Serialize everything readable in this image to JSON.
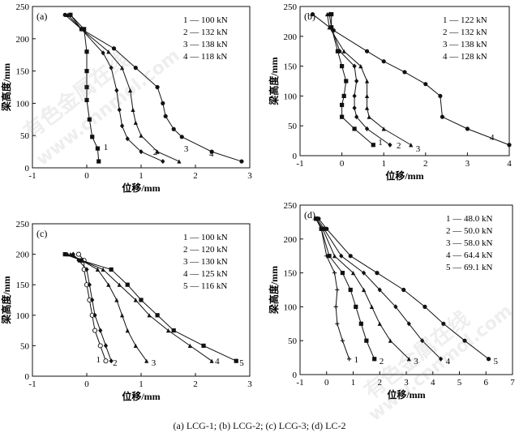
{
  "caption": "(a) LCG-1; (b) LCG-2; (c) LCG-3; (d) LC-2",
  "watermark": {
    "cn": "有色金属在线",
    "url": "www.cnnmol.com"
  },
  "chart_data": [
    {
      "type": "line",
      "panel_label": "(a)",
      "xlabel": "位移/mm",
      "ylabel": "梁高度/mm",
      "xlim": [
        -1,
        3
      ],
      "ylim": [
        0,
        250
      ],
      "xticks": [
        -1,
        0,
        1,
        2,
        3
      ],
      "yticks": [
        0,
        50,
        100,
        150,
        200,
        250
      ],
      "legend": [
        "1 — 100 kN",
        "2 — 132 kN",
        "3 — 138 kN",
        "4 — 118 kN"
      ],
      "series": [
        {
          "name": "1",
          "marker": "square",
          "points": [
            [
              -0.3,
              237
            ],
            [
              -0.05,
              215
            ],
            [
              0.0,
              180
            ],
            [
              0.0,
              150
            ],
            [
              0.0,
              125
            ],
            [
              0.0,
              105
            ],
            [
              0.05,
              75
            ],
            [
              0.1,
              48
            ],
            [
              0.2,
              30
            ],
            [
              0.22,
              10
            ]
          ]
        },
        {
          "name": "2",
          "marker": "diamond",
          "points": [
            [
              -0.3,
              237
            ],
            [
              -0.1,
              215
            ],
            [
              0.3,
              178
            ],
            [
              0.45,
              155
            ],
            [
              0.55,
              120
            ],
            [
              0.6,
              90
            ],
            [
              0.65,
              65
            ],
            [
              0.75,
              45
            ],
            [
              1.0,
              25
            ],
            [
              1.4,
              10
            ]
          ]
        },
        {
          "name": "3",
          "marker": "triangle",
          "points": [
            [
              -0.35,
              237
            ],
            [
              -0.1,
              215
            ],
            [
              0.4,
              180
            ],
            [
              0.65,
              155
            ],
            [
              0.8,
              120
            ],
            [
              0.85,
              90
            ],
            [
              0.9,
              70
            ],
            [
              1.0,
              50
            ],
            [
              1.3,
              25
            ],
            [
              1.7,
              10
            ]
          ]
        },
        {
          "name": "4",
          "marker": "circle",
          "points": [
            [
              -0.4,
              237
            ],
            [
              -0.1,
              215
            ],
            [
              0.5,
              185
            ],
            [
              0.9,
              155
            ],
            [
              1.3,
              125
            ],
            [
              1.4,
              100
            ],
            [
              1.45,
              80
            ],
            [
              1.6,
              60
            ],
            [
              1.75,
              48
            ],
            [
              2.3,
              25
            ],
            [
              2.85,
              10
            ]
          ]
        }
      ]
    },
    {
      "type": "line",
      "panel_label": "(b)",
      "xlabel": "位移/mm",
      "ylabel": "梁高度/mm",
      "xlim": [
        -1,
        4
      ],
      "ylim": [
        0,
        250
      ],
      "xticks": [
        -1,
        0,
        1,
        2,
        3,
        4
      ],
      "yticks": [
        0,
        50,
        100,
        150,
        200,
        250
      ],
      "legend": [
        "1 — 122 kN",
        "2 — 132 kN",
        "3 — 138 kN",
        "4 — 128 kN"
      ],
      "series": [
        {
          "name": "1",
          "marker": "square",
          "points": [
            [
              -0.25,
              237
            ],
            [
              -0.25,
              215
            ],
            [
              -0.1,
              175
            ],
            [
              0.0,
              150
            ],
            [
              0.1,
              125
            ],
            [
              0.05,
              100
            ],
            [
              0.0,
              85
            ],
            [
              0.0,
              65
            ],
            [
              0.3,
              45
            ],
            [
              0.75,
              18
            ]
          ]
        },
        {
          "name": "2",
          "marker": "diamond",
          "points": [
            [
              -0.3,
              237
            ],
            [
              -0.25,
              215
            ],
            [
              -0.05,
              175
            ],
            [
              0.3,
              150
            ],
            [
              0.35,
              125
            ],
            [
              0.3,
              100
            ],
            [
              0.3,
              80
            ],
            [
              0.35,
              65
            ],
            [
              0.6,
              45
            ],
            [
              1.15,
              18
            ]
          ]
        },
        {
          "name": "3",
          "marker": "triangle",
          "points": [
            [
              -0.35,
              237
            ],
            [
              -0.3,
              215
            ],
            [
              0.05,
              175
            ],
            [
              0.45,
              150
            ],
            [
              0.6,
              125
            ],
            [
              0.6,
              100
            ],
            [
              0.6,
              80
            ],
            [
              0.65,
              65
            ],
            [
              1.0,
              45
            ],
            [
              1.65,
              18
            ]
          ]
        },
        {
          "name": "4",
          "marker": "circle",
          "points": [
            [
              -0.7,
              237
            ],
            [
              -0.2,
              210
            ],
            [
              0.6,
              175
            ],
            [
              1.0,
              158
            ],
            [
              1.5,
              140
            ],
            [
              2.0,
              120
            ],
            [
              2.35,
              100
            ],
            [
              2.4,
              65
            ],
            [
              3.0,
              45
            ],
            [
              4.0,
              18
            ]
          ]
        }
      ]
    },
    {
      "type": "line",
      "panel_label": "(c)",
      "xlabel": "位移/mm",
      "ylabel": "梁高度/mm",
      "xlim": [
        -1,
        3
      ],
      "ylim": [
        0,
        250
      ],
      "xticks": [
        -1,
        0,
        1,
        2,
        3
      ],
      "yticks": [
        0,
        50,
        100,
        150,
        200,
        250
      ],
      "legend": [
        "1 — 100 kN",
        "2 — 120 kN",
        "3 — 130 kN",
        "4 — 125 kN",
        "5 — 116 kN"
      ],
      "series": [
        {
          "name": "1",
          "marker": "circle-open",
          "points": [
            [
              -0.15,
              200
            ],
            [
              -0.05,
              190
            ],
            [
              -0.05,
              175
            ],
            [
              0.0,
              150
            ],
            [
              0.05,
              125
            ],
            [
              0.1,
              100
            ],
            [
              0.15,
              75
            ],
            [
              0.25,
              50
            ],
            [
              0.35,
              25
            ]
          ]
        },
        {
          "name": "2",
          "marker": "diamond",
          "points": [
            [
              -0.25,
              200
            ],
            [
              -0.15,
              190
            ],
            [
              0.0,
              175
            ],
            [
              0.05,
              150
            ],
            [
              0.1,
              125
            ],
            [
              0.15,
              100
            ],
            [
              0.25,
              75
            ],
            [
              0.35,
              50
            ],
            [
              0.45,
              25
            ]
          ]
        },
        {
          "name": "3",
          "marker": "triangle",
          "points": [
            [
              -0.3,
              200
            ],
            [
              -0.1,
              190
            ],
            [
              0.2,
              175
            ],
            [
              0.4,
              150
            ],
            [
              0.55,
              125
            ],
            [
              0.65,
              100
            ],
            [
              0.75,
              75
            ],
            [
              0.9,
              50
            ],
            [
              1.1,
              25
            ]
          ]
        },
        {
          "name": "4",
          "marker": "triangle",
          "points": [
            [
              -0.35,
              200
            ],
            [
              -0.1,
              190
            ],
            [
              0.3,
              175
            ],
            [
              0.6,
              150
            ],
            [
              0.9,
              125
            ],
            [
              1.15,
              100
            ],
            [
              1.5,
              75
            ],
            [
              1.9,
              50
            ],
            [
              2.3,
              25
            ]
          ]
        },
        {
          "name": "5",
          "marker": "square",
          "points": [
            [
              -0.4,
              200
            ],
            [
              -0.1,
              190
            ],
            [
              0.45,
              175
            ],
            [
              0.75,
              150
            ],
            [
              1.0,
              125
            ],
            [
              1.3,
              100
            ],
            [
              1.6,
              75
            ],
            [
              2.15,
              50
            ],
            [
              2.75,
              25
            ]
          ]
        }
      ]
    },
    {
      "type": "line",
      "panel_label": "(d)",
      "xlabel": "位移/mm",
      "ylabel": "梁高度/mm",
      "xlim": [
        -1,
        7
      ],
      "ylim": [
        0,
        250
      ],
      "xticks": [
        -1,
        0,
        1,
        2,
        3,
        4,
        5,
        6,
        7
      ],
      "yticks": [
        0,
        50,
        100,
        150,
        200,
        250
      ],
      "legend": [
        "1 — 48.0 kN",
        "2 — 50.0 kN",
        "3 — 58.0 kN",
        "4 — 64.4 kN",
        "5 — 69.1 kN"
      ],
      "series": [
        {
          "name": "1",
          "marker": "cross",
          "points": [
            [
              -0.4,
              230
            ],
            [
              -0.2,
              215
            ],
            [
              0.0,
              175
            ],
            [
              0.3,
              150
            ],
            [
              0.4,
              125
            ],
            [
              0.35,
              100
            ],
            [
              0.4,
              75
            ],
            [
              0.6,
              50
            ],
            [
              0.85,
              23
            ]
          ]
        },
        {
          "name": "2",
          "marker": "square",
          "points": [
            [
              -0.4,
              230
            ],
            [
              -0.2,
              215
            ],
            [
              0.1,
              175
            ],
            [
              0.6,
              150
            ],
            [
              0.9,
              125
            ],
            [
              1.1,
              100
            ],
            [
              1.3,
              75
            ],
            [
              1.5,
              50
            ],
            [
              1.8,
              23
            ]
          ]
        },
        {
          "name": "3",
          "marker": "triangle",
          "points": [
            [
              -0.4,
              230
            ],
            [
              -0.15,
              215
            ],
            [
              0.3,
              175
            ],
            [
              1.0,
              150
            ],
            [
              1.4,
              125
            ],
            [
              1.7,
              100
            ],
            [
              2.0,
              75
            ],
            [
              2.4,
              50
            ],
            [
              3.1,
              23
            ]
          ]
        },
        {
          "name": "4",
          "marker": "diamond",
          "points": [
            [
              -0.35,
              230
            ],
            [
              -0.1,
              215
            ],
            [
              0.55,
              175
            ],
            [
              1.4,
              150
            ],
            [
              2.0,
              125
            ],
            [
              2.6,
              100
            ],
            [
              3.1,
              75
            ],
            [
              3.6,
              50
            ],
            [
              4.3,
              23
            ]
          ]
        },
        {
          "name": "5",
          "marker": "circle",
          "points": [
            [
              -0.3,
              230
            ],
            [
              0.0,
              215
            ],
            [
              0.9,
              175
            ],
            [
              1.9,
              150
            ],
            [
              2.9,
              125
            ],
            [
              3.7,
              100
            ],
            [
              4.4,
              75
            ],
            [
              5.2,
              50
            ],
            [
              6.1,
              23
            ]
          ]
        }
      ]
    }
  ]
}
